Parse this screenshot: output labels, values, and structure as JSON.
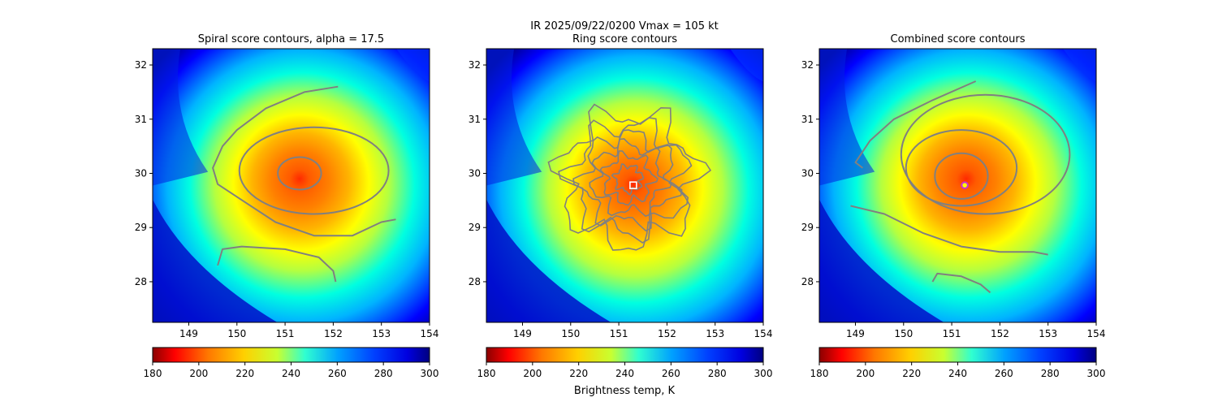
{
  "figure": {
    "suptitle": "IR  2025/09/22/0200    Vmax = 105 kt",
    "colorbar_label": "Brightness temp, K",
    "colors": {
      "contour": "#808080",
      "ring_marker": "#ffffff",
      "combined_marker_outer": "#cc33cc",
      "combined_marker_inner": "#ffff00"
    }
  },
  "chart_data": [
    {
      "type": "heatmap",
      "title": "Spiral score contours, alpha = 17.5",
      "xlim": [
        148.25,
        154
      ],
      "ylim": [
        27.25,
        32.3
      ],
      "xticks": [
        "149",
        "150",
        "151",
        "152",
        "153",
        "154"
      ],
      "yticks": [
        "28",
        "29",
        "30",
        "31",
        "32"
      ],
      "colorbar": {
        "range": [
          180,
          300
        ],
        "ticks": [
          "180",
          "200",
          "220",
          "240",
          "260",
          "280",
          "300"
        ]
      },
      "center": [
        151.3,
        29.9
      ],
      "contours": [
        {
          "name": "inner",
          "rx": 0.45,
          "ry": 0.3,
          "cx": 151.3,
          "cy": 30.0
        },
        {
          "name": "outer",
          "rx": 1.55,
          "ry": 0.8,
          "cx": 151.6,
          "cy": 30.05
        }
      ],
      "spiral_bands": [
        [
          [
            152.1,
            31.6
          ],
          [
            151.4,
            31.5
          ],
          [
            150.6,
            31.2
          ],
          [
            150.0,
            30.8
          ],
          [
            149.7,
            30.5
          ],
          [
            149.5,
            30.1
          ],
          [
            149.6,
            29.8
          ],
          [
            150.2,
            29.45
          ],
          [
            150.8,
            29.1
          ],
          [
            151.6,
            28.85
          ],
          [
            152.4,
            28.85
          ],
          [
            153.0,
            29.1
          ],
          [
            153.3,
            29.15
          ]
        ],
        [
          [
            149.6,
            28.3
          ],
          [
            149.7,
            28.6
          ],
          [
            150.1,
            28.65
          ],
          [
            151.0,
            28.6
          ],
          [
            151.7,
            28.45
          ],
          [
            152.0,
            28.2
          ],
          [
            152.05,
            28.0
          ]
        ]
      ]
    },
    {
      "type": "heatmap",
      "title": "Ring score contours",
      "xlim": [
        148.25,
        154
      ],
      "ylim": [
        27.25,
        32.3
      ],
      "xticks": [
        "149",
        "150",
        "151",
        "152",
        "153",
        "154"
      ],
      "yticks": [
        "28",
        "29",
        "30",
        "31",
        "32"
      ],
      "colorbar": {
        "range": [
          180,
          300
        ],
        "ticks": [
          "180",
          "200",
          "220",
          "240",
          "260",
          "280",
          "300"
        ]
      },
      "center": [
        151.3,
        29.8
      ],
      "ring_center": [
        151.2,
        29.9
      ],
      "ring_radii": [
        0.25,
        0.45,
        0.65,
        0.85,
        1.05,
        1.25
      ],
      "ring_marker": [
        151.3,
        29.78
      ]
    },
    {
      "type": "heatmap",
      "title": "Combined score contours",
      "xlim": [
        148.25,
        154
      ],
      "ylim": [
        27.25,
        32.3
      ],
      "xticks": [
        "149",
        "150",
        "151",
        "152",
        "153",
        "154"
      ],
      "yticks": [
        "28",
        "29",
        "30",
        "31",
        "32"
      ],
      "colorbar": {
        "range": [
          180,
          300
        ],
        "ticks": [
          "180",
          "200",
          "220",
          "240",
          "260",
          "280",
          "300"
        ]
      },
      "center": [
        151.3,
        29.9
      ],
      "contours": [
        {
          "name": "inner",
          "rx": 0.55,
          "ry": 0.42,
          "cx": 151.2,
          "cy": 29.95
        },
        {
          "name": "middle",
          "rx": 1.15,
          "ry": 0.7,
          "cx": 151.2,
          "cy": 30.1
        },
        {
          "name": "outer",
          "rx": 1.75,
          "ry": 1.1,
          "cx": 151.7,
          "cy": 30.35
        }
      ],
      "spiral_bands": [
        [
          [
            151.5,
            31.7
          ],
          [
            150.6,
            31.35
          ],
          [
            149.8,
            31.0
          ],
          [
            149.3,
            30.6
          ],
          [
            149.0,
            30.2
          ],
          [
            149.15,
            30.1
          ]
        ],
        [
          [
            148.9,
            29.4
          ],
          [
            149.6,
            29.25
          ],
          [
            150.4,
            28.9
          ],
          [
            151.2,
            28.65
          ],
          [
            152.0,
            28.55
          ],
          [
            152.7,
            28.55
          ],
          [
            153.0,
            28.5
          ]
        ],
        [
          [
            150.6,
            28.0
          ],
          [
            150.7,
            28.15
          ],
          [
            151.2,
            28.1
          ],
          [
            151.6,
            27.95
          ],
          [
            151.8,
            27.8
          ]
        ]
      ],
      "combined_marker": [
        151.27,
        29.78
      ]
    }
  ]
}
